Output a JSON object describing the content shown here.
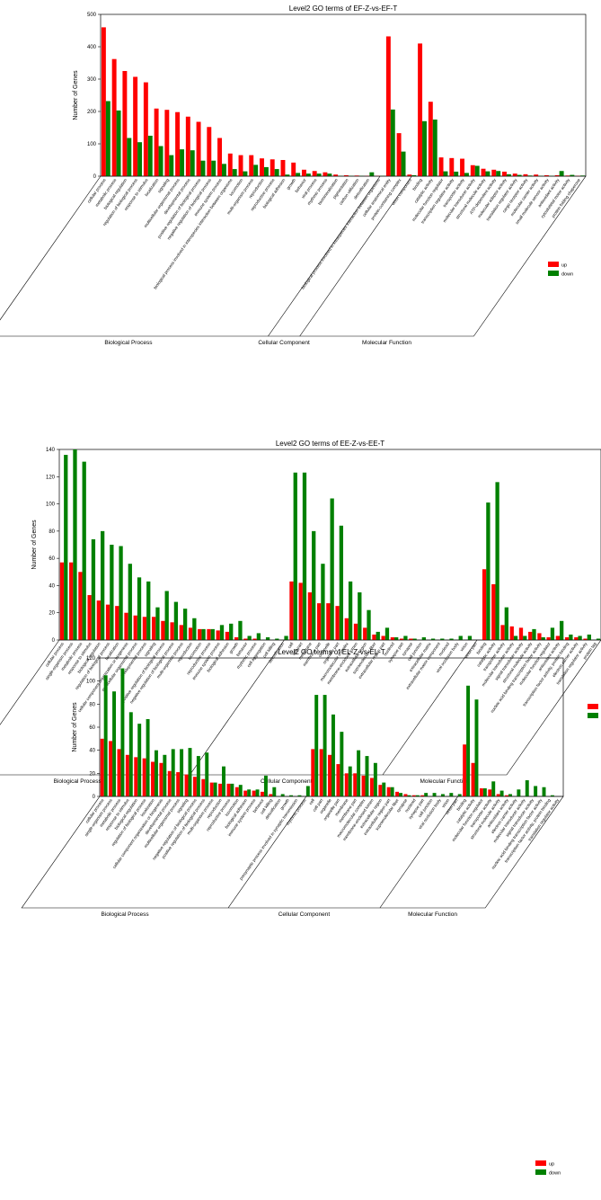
{
  "colors": {
    "up": "#ff0000",
    "down": "#008000",
    "axis": "#000000"
  },
  "chart_data": [
    {
      "type": "bar",
      "title": "Level2 GO terms of EF-Z-vs-EF-T",
      "ylabel": "Number of Genes",
      "ylim": [
        0,
        500
      ],
      "yticks": [
        0,
        100,
        200,
        300,
        400,
        500
      ],
      "legend": [
        "up",
        "down"
      ],
      "legend_position": "right",
      "groups": [
        "Biological Process",
        "Cellular Component",
        "Molecular Function"
      ],
      "categories": [
        "cellular process",
        "metabolic process",
        "biological regulation",
        "regulation of biological process",
        "response to stimulus",
        "localization",
        "signaling",
        "multicellular organismal process",
        "developmental process",
        "positive regulation of biological process",
        "negative regulation of biological process",
        "immune system process",
        "biological process involved in interspecies interaction between organisms",
        "locomotion",
        "multi-organism process",
        "reproduction",
        "reproductive process",
        "biological adhesion",
        "growth",
        "behavior",
        "viral process",
        "rhythmic process",
        "biomineralization",
        "pigmentation",
        "carbon utilization",
        "detoxification",
        "biological process involved in intraspecies interaction between organisms",
        "cellular anatomical entity",
        "protein-containing complex",
        "virion component",
        "binding",
        "catalytic activity",
        "molecular function regulator",
        "transcription regulator activity",
        "transporter activity",
        "molecular transducer activity",
        "structural molecule activity",
        "ATP-dependent activity",
        "molecular adaptor activity",
        "translation regulator activity",
        "cargo receptor activity",
        "molecular carrier activity",
        "small molecule sensor activity",
        "antioxidant activity",
        "cytoskeletal motor activity",
        "protein folding chaperone"
      ],
      "series": [
        {
          "name": "up",
          "values": [
            460,
            362,
            325,
            307,
            290,
            209,
            205,
            198,
            184,
            168,
            152,
            118,
            70,
            65,
            65,
            55,
            52,
            50,
            42,
            20,
            16,
            12,
            5,
            3,
            2,
            1,
            1,
            432,
            133,
            5,
            410,
            230,
            58,
            56,
            54,
            34,
            23,
            20,
            14,
            8,
            6,
            5,
            3,
            3,
            2,
            1
          ]
        },
        {
          "name": "down",
          "values": [
            232,
            203,
            118,
            105,
            125,
            93,
            65,
            83,
            80,
            48,
            48,
            38,
            22,
            15,
            35,
            28,
            22,
            5,
            10,
            8,
            8,
            8,
            1,
            1,
            1,
            12,
            1,
            206,
            76,
            3,
            170,
            175,
            15,
            14,
            10,
            32,
            15,
            16,
            6,
            4,
            2,
            1,
            1,
            16,
            4,
            2
          ]
        }
      ]
    },
    {
      "type": "bar",
      "title": "Level2 GO terms of EE-Z-vs-EE-T",
      "ylabel": "Number of Genes",
      "ylim": [
        0,
        140
      ],
      "yticks": [
        0,
        20,
        40,
        60,
        80,
        100,
        120,
        140
      ],
      "legend": [
        "up",
        "down"
      ],
      "legend_position": "right",
      "groups": [
        "Biological Process",
        "Cellular Component",
        "Molecular Function"
      ],
      "categories": [
        "cellular process",
        "single-organism process",
        "metabolic process",
        "response to stimulus",
        "biological regulation",
        "regulation of biological process",
        "localization",
        "cellular component organization or biogenesis",
        "multicellular organismal process",
        "developmental process",
        "signaling",
        "positive regulation of biological process",
        "negative regulation of biological process",
        "multi-organism process",
        "reproduction",
        "locomotion",
        "reproductive process",
        "immune system process",
        "biological adhesion",
        "growth",
        "behavior",
        "rhythmic process",
        "cell aggregation",
        "cell killing",
        "detoxification",
        "cell",
        "cell part",
        "membrane",
        "membrane part",
        "organelle",
        "organelle part",
        "macromolecular complex",
        "membrane-enclosed lumen",
        "extracellular region",
        "supramolecular fiber",
        "extracellular region part",
        "nucleoid",
        "synapse part",
        "synapse",
        "cell junction",
        "extracellular matrix",
        "extracellular matrix component",
        "nucleoid",
        "viral occlusion body",
        "virion",
        "virion part",
        "binding",
        "catalytic activity",
        "transporter activity",
        "molecular transducer activity",
        "signal transducer activity",
        "structural molecule activity",
        "nucleic acid binding transcription factor activity",
        "molecular function regulator",
        "antioxidant activity",
        "transcription factor activity, protein binding",
        "electron carrier activity",
        "translation regulator activity",
        "protein tag"
      ],
      "series": [
        {
          "name": "up",
          "values": [
            57,
            57,
            50,
            33,
            29,
            26,
            25,
            20,
            18,
            17,
            17,
            14,
            13,
            11,
            9,
            8,
            8,
            7,
            6,
            2,
            1,
            1,
            0,
            0,
            0,
            43,
            42,
            35,
            27,
            27,
            25,
            16,
            12,
            9,
            4,
            3,
            2,
            1,
            1,
            0,
            0,
            0,
            0,
            0,
            0,
            0,
            52,
            41,
            11,
            10,
            9,
            6,
            5,
            2,
            3,
            2,
            2,
            1,
            0
          ]
        },
        {
          "name": "down",
          "values": [
            136,
            140,
            131,
            74,
            80,
            70,
            69,
            56,
            46,
            43,
            24,
            36,
            28,
            23,
            16,
            8,
            8,
            11,
            12,
            14,
            3,
            5,
            2,
            1,
            3,
            123,
            123,
            80,
            56,
            104,
            84,
            43,
            35,
            22,
            6,
            9,
            2,
            3,
            1,
            2,
            1,
            1,
            1,
            3,
            3,
            0,
            101,
            116,
            24,
            3,
            3,
            8,
            2,
            9,
            14,
            4,
            3,
            4,
            1
          ]
        }
      ]
    },
    {
      "type": "bar",
      "title": "Level2 GO terms of EL-Z-vs-EL-T",
      "ylabel": "Number of Genes",
      "ylim": [
        0,
        120
      ],
      "yticks": [
        0,
        20,
        40,
        60,
        80,
        100,
        120
      ],
      "legend": [
        "up",
        "down"
      ],
      "legend_position": "right",
      "groups": [
        "Biological Process",
        "Cellular Component",
        "Molecular Function"
      ],
      "categories": [
        "cellular process",
        "single-organism process",
        "metabolic process",
        "response to stimulus",
        "biological regulation",
        "regulation of biological process",
        "localization",
        "cellular component organization or biogenesis",
        "developmental process",
        "multicellular organismal process",
        "signaling",
        "negative regulation of biological process",
        "positive regulation of biological process",
        "multi-organism process",
        "reproduction",
        "reproductive process",
        "locomotion",
        "biological adhesion",
        "immune system process",
        "behavior",
        "cell killing",
        "detoxification",
        "growth",
        "presynaptic process involved in synaptic transmission",
        "rhythmic process",
        "cell",
        "cell part",
        "organelle",
        "organelle part",
        "membrane",
        "membrane part",
        "macromolecular complex",
        "membrane-enclosed lumen",
        "extracellular region",
        "extracellular region part",
        "supramolecular fiber",
        "synapse",
        "nucleoid",
        "synapse part",
        "cell junction",
        "viral occlusion body",
        "virion",
        "virion part",
        "binding",
        "catalytic activity",
        "molecular function regulator",
        "transporter activity",
        "structural molecule activity",
        "antioxidant activity",
        "electron carrier activity",
        "molecular transducer activity",
        "signal transducer activity",
        "nucleic acid binding transcription factor activity",
        "transcription factor activity, protein binding",
        "translation regulator activity"
      ],
      "series": [
        {
          "name": "up",
          "values": [
            50,
            48,
            41,
            36,
            34,
            33,
            30,
            29,
            22,
            21,
            19,
            17,
            15,
            12,
            11,
            11,
            8,
            5,
            5,
            4,
            2,
            0,
            0,
            0,
            0,
            41,
            41,
            36,
            28,
            20,
            20,
            18,
            16,
            10,
            8,
            4,
            2,
            1,
            1,
            0,
            0,
            0,
            0,
            45,
            29,
            7,
            6,
            2,
            1,
            0,
            0,
            0,
            0,
            0,
            0
          ]
        },
        {
          "name": "down",
          "values": [
            105,
            91,
            111,
            73,
            63,
            67,
            40,
            36,
            41,
            41,
            42,
            35,
            38,
            12,
            26,
            11,
            10,
            6,
            6,
            18,
            8,
            2,
            1,
            1,
            9,
            88,
            88,
            71,
            56,
            26,
            40,
            35,
            29,
            12,
            8,
            3,
            1,
            1,
            3,
            3,
            2,
            3,
            2,
            96,
            84,
            7,
            13,
            5,
            2,
            6,
            14,
            9,
            8,
            1,
            0
          ]
        }
      ]
    }
  ]
}
